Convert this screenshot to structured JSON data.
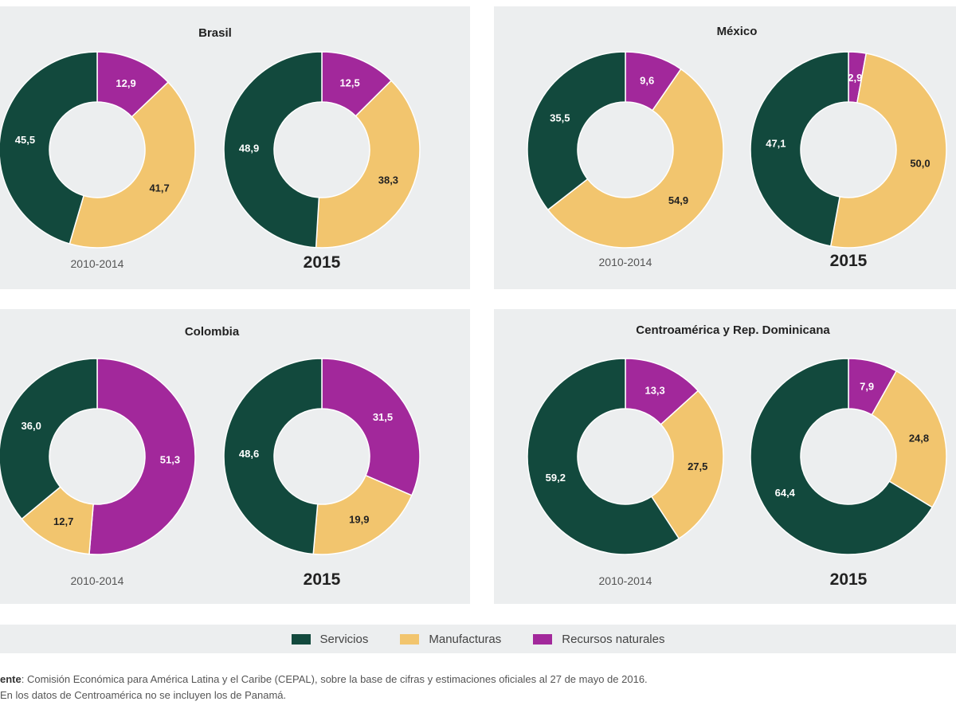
{
  "colors": {
    "Servicios": "#12493d",
    "Manufacturas": "#f2c56e",
    "Recursos naturales": "#a2289b"
  },
  "chart_data": [
    {
      "type": "pie",
      "title": "Brasil",
      "categories": [
        "Recursos naturales",
        "Manufacturas",
        "Servicios"
      ],
      "series": [
        {
          "name": "2010-2014",
          "values": [
            12.9,
            41.7,
            45.5
          ]
        },
        {
          "name": "2015",
          "values": [
            12.5,
            38.3,
            48.9
          ]
        }
      ]
    },
    {
      "type": "pie",
      "title": "México",
      "categories": [
        "Recursos naturales",
        "Manufacturas",
        "Servicios"
      ],
      "series": [
        {
          "name": "2010-2014",
          "values": [
            9.6,
            54.9,
            35.5
          ]
        },
        {
          "name": "2015",
          "values": [
            2.9,
            50.0,
            47.1
          ]
        }
      ]
    },
    {
      "type": "pie",
      "title": "Colombia",
      "categories": [
        "Recursos naturales",
        "Manufacturas",
        "Servicios"
      ],
      "series": [
        {
          "name": "2010-2014",
          "values": [
            51.3,
            12.7,
            36.0
          ]
        },
        {
          "name": "2015",
          "values": [
            31.5,
            19.9,
            48.6
          ]
        }
      ]
    },
    {
      "type": "pie",
      "title": "Centroamérica y Rep. Dominicana",
      "categories": [
        "Recursos naturales",
        "Manufacturas",
        "Servicios"
      ],
      "series": [
        {
          "name": "2010-2014",
          "values": [
            13.3,
            27.5,
            59.2
          ]
        },
        {
          "name": "2015",
          "values": [
            7.9,
            24.8,
            64.4
          ]
        }
      ]
    }
  ],
  "legend": [
    "Servicios",
    "Manufacturas",
    "Recursos naturales"
  ],
  "footnote": {
    "label": "ente",
    "line1": ": Comisión Económica para América Latina y el Caribe (CEPAL), sobre la base de cifras y estimaciones oficiales al 27 de mayo de 2016.",
    "line2": "En los datos de Centroamérica no se incluyen los de Panamá."
  }
}
